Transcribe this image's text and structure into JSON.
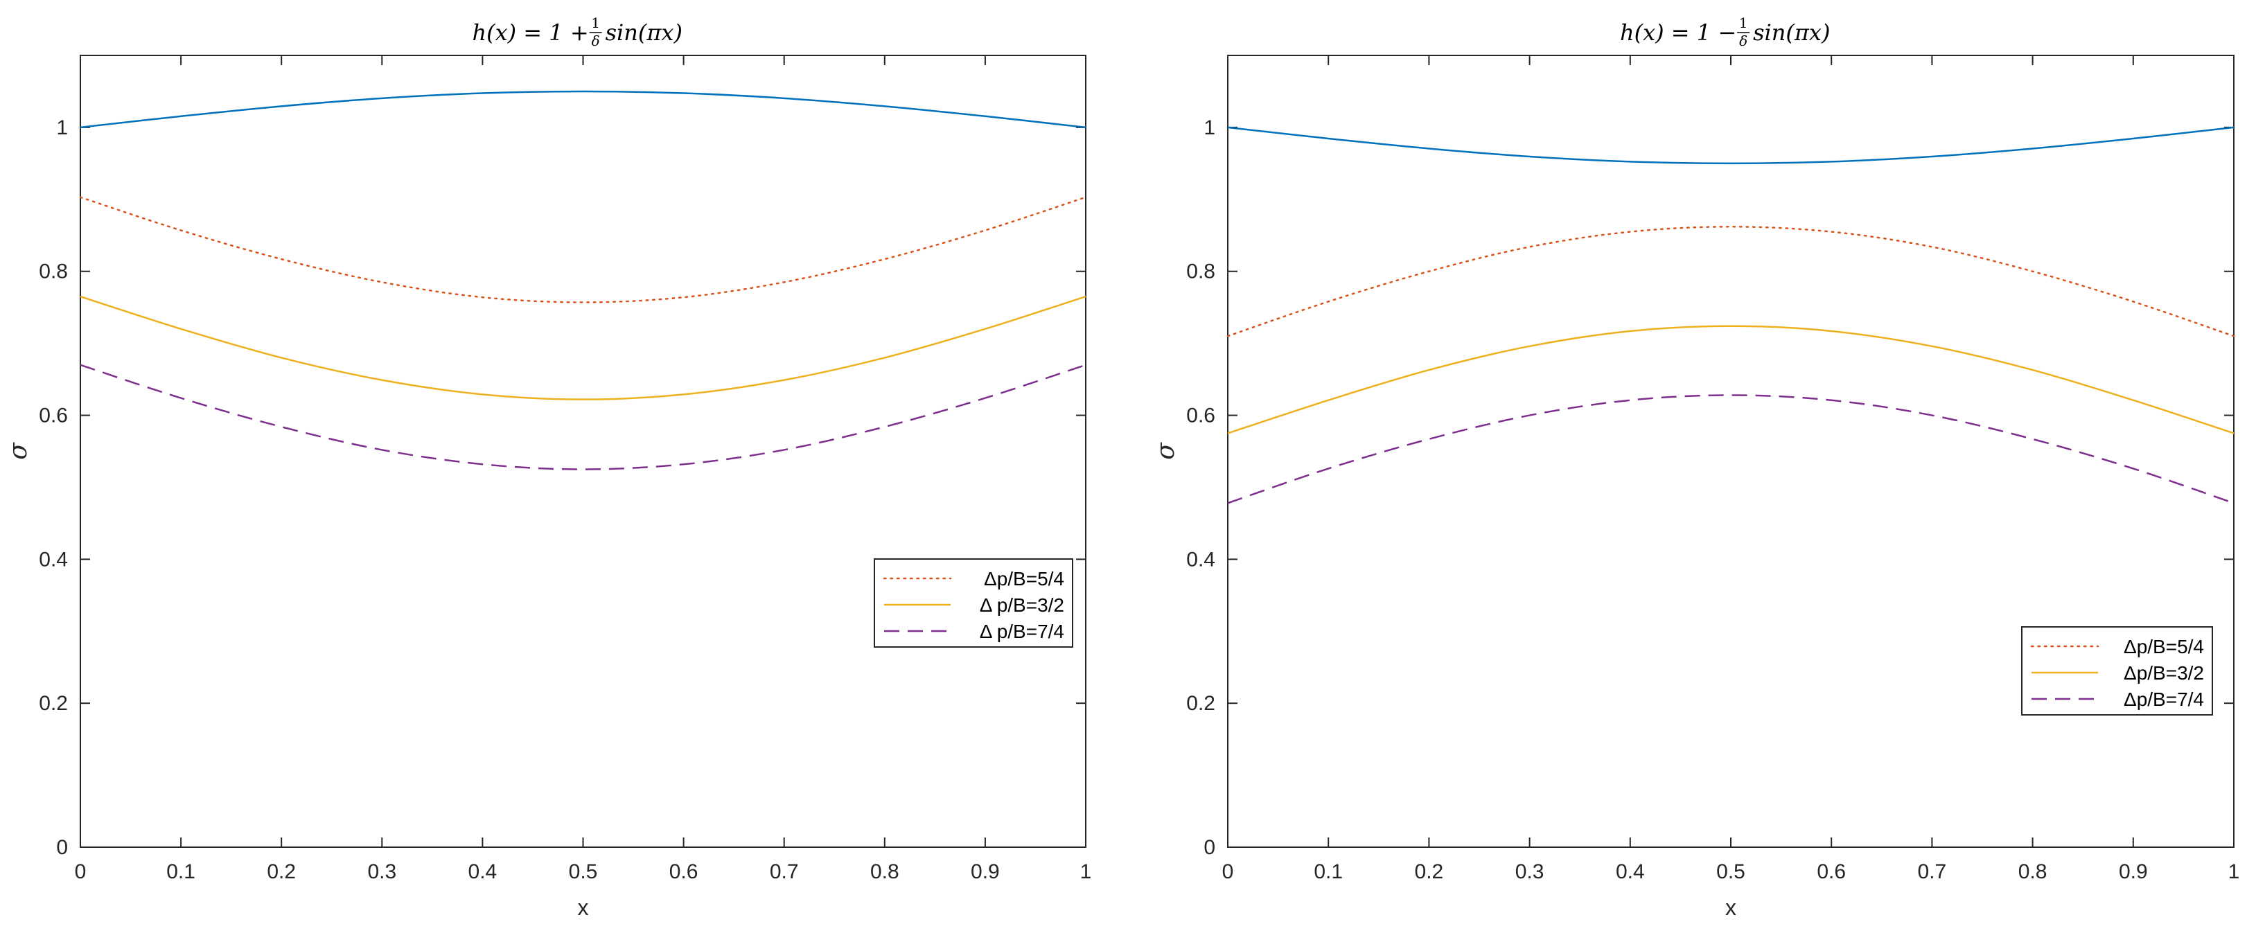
{
  "figure": {
    "panels": [
      "left",
      "right"
    ]
  },
  "chart_data": [
    {
      "type": "line",
      "title": "h(x) = 1 + (1/δ) sin(πx)",
      "title_parts": {
        "lhs": "h(x) = 1 + ",
        "num": "1",
        "den": "δ",
        "rhs": " sin(πx)"
      },
      "xlabel": "x",
      "ylabel": "σ",
      "xlim": [
        0,
        1
      ],
      "ylim": [
        0,
        1.1
      ],
      "xticks": [
        0,
        0.1,
        0.2,
        0.3,
        0.4,
        0.5,
        0.6,
        0.7,
        0.8,
        0.9,
        1
      ],
      "xtick_labels": [
        "0",
        "0.1",
        "0.2",
        "0.3",
        "0.4",
        "0.5",
        "0.6",
        "0.7",
        "0.8",
        "0.9",
        "1"
      ],
      "yticks": [
        0,
        0.2,
        0.4,
        0.6,
        0.8,
        1
      ],
      "ytick_labels": [
        "0",
        "0.2",
        "0.4",
        "0.6",
        "0.8",
        "1"
      ],
      "legend_position": "right-middle",
      "series": [
        {
          "name": "base",
          "color": "#0072BD",
          "dash": "solid",
          "in_legend": false,
          "x": [
            0,
            0.1,
            0.2,
            0.3,
            0.4,
            0.5,
            0.6,
            0.7,
            0.8,
            0.9,
            1
          ],
          "y": [
            1.0,
            1.0155,
            1.0294,
            1.0405,
            1.0476,
            1.05,
            1.0476,
            1.0405,
            1.0294,
            1.0155,
            1.0
          ]
        },
        {
          "name": "Δp/B=5/4",
          "color": "#D95319",
          "dash": "dotted",
          "in_legend": true,
          "x": [
            0,
            0.1,
            0.2,
            0.3,
            0.4,
            0.5,
            0.6,
            0.7,
            0.8,
            0.9,
            1
          ],
          "y": [
            0.903,
            0.857,
            0.817,
            0.785,
            0.764,
            0.757,
            0.764,
            0.785,
            0.817,
            0.857,
            0.903
          ]
        },
        {
          "name": "Δ p/B=3/2",
          "color": "#EDB120",
          "dash": "solid",
          "in_legend": true,
          "x": [
            0,
            0.1,
            0.2,
            0.3,
            0.4,
            0.5,
            0.6,
            0.7,
            0.8,
            0.9,
            1
          ],
          "y": [
            0.765,
            0.72,
            0.68,
            0.649,
            0.629,
            0.622,
            0.629,
            0.649,
            0.68,
            0.72,
            0.765
          ]
        },
        {
          "name": "Δ p/B=7/4",
          "color": "#7E2F8E",
          "dash": "dashed",
          "in_legend": true,
          "x": [
            0,
            0.1,
            0.2,
            0.3,
            0.4,
            0.5,
            0.6,
            0.7,
            0.8,
            0.9,
            1
          ],
          "y": [
            0.67,
            0.624,
            0.584,
            0.552,
            0.532,
            0.525,
            0.532,
            0.552,
            0.584,
            0.624,
            0.67
          ]
        }
      ]
    },
    {
      "type": "line",
      "title": "h(x) = 1 − (1/δ) sin(πx)",
      "title_parts": {
        "lhs": "h(x) = 1 − ",
        "num": "1",
        "den": "δ",
        "rhs": " sin(πx)"
      },
      "xlabel": "x",
      "ylabel": "σ",
      "xlim": [
        0,
        1
      ],
      "ylim": [
        0,
        1.1
      ],
      "xticks": [
        0,
        0.1,
        0.2,
        0.3,
        0.4,
        0.5,
        0.6,
        0.7,
        0.8,
        0.9,
        1
      ],
      "xtick_labels": [
        "0",
        "0.1",
        "0.2",
        "0.3",
        "0.4",
        "0.5",
        "0.6",
        "0.7",
        "0.8",
        "0.9",
        "1"
      ],
      "yticks": [
        0,
        0.2,
        0.4,
        0.6,
        0.8,
        1
      ],
      "ytick_labels": [
        "0",
        "0.2",
        "0.4",
        "0.6",
        "0.8",
        "1"
      ],
      "legend_position": "bottom-right",
      "series": [
        {
          "name": "base",
          "color": "#0072BD",
          "dash": "solid",
          "in_legend": false,
          "x": [
            0,
            0.1,
            0.2,
            0.3,
            0.4,
            0.5,
            0.6,
            0.7,
            0.8,
            0.9,
            1
          ],
          "y": [
            1.0,
            0.9845,
            0.9706,
            0.9595,
            0.9524,
            0.95,
            0.9524,
            0.9595,
            0.9706,
            0.9845,
            1.0
          ]
        },
        {
          "name": "Δp/B=5/4",
          "color": "#D95319",
          "dash": "dotted",
          "in_legend": true,
          "x": [
            0,
            0.1,
            0.2,
            0.3,
            0.4,
            0.5,
            0.6,
            0.7,
            0.8,
            0.9,
            1
          ],
          "y": [
            0.71,
            0.758,
            0.8,
            0.834,
            0.855,
            0.862,
            0.855,
            0.834,
            0.8,
            0.758,
            0.71
          ]
        },
        {
          "name": "Δp/B=3/2",
          "color": "#EDB120",
          "dash": "solid",
          "in_legend": true,
          "x": [
            0,
            0.1,
            0.2,
            0.3,
            0.4,
            0.5,
            0.6,
            0.7,
            0.8,
            0.9,
            1
          ],
          "y": [
            0.575,
            0.621,
            0.663,
            0.696,
            0.717,
            0.724,
            0.717,
            0.696,
            0.663,
            0.621,
            0.575
          ]
        },
        {
          "name": "Δp/B=7/4",
          "color": "#7E2F8E",
          "dash": "dashed",
          "in_legend": true,
          "x": [
            0,
            0.1,
            0.2,
            0.3,
            0.4,
            0.5,
            0.6,
            0.7,
            0.8,
            0.9,
            1
          ],
          "y": [
            0.478,
            0.526,
            0.567,
            0.6,
            0.621,
            0.628,
            0.621,
            0.6,
            0.567,
            0.526,
            0.478
          ]
        }
      ]
    }
  ]
}
